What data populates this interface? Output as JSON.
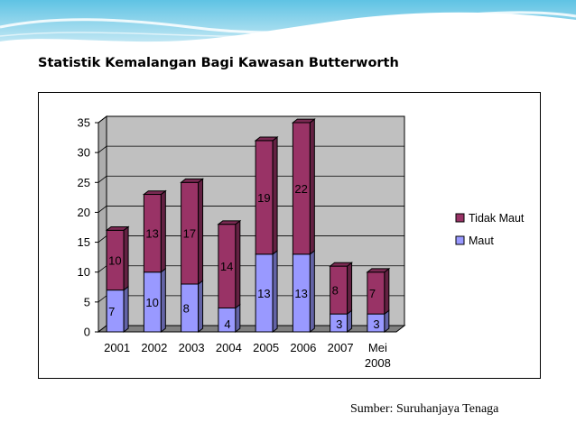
{
  "slide": {
    "title": "Statistik Kemalangan Bagi Kawasan Butterworth",
    "source": "Sumber: Suruhanjaya Tenaga"
  },
  "chart_data": {
    "type": "bar",
    "stacked": true,
    "three_d": true,
    "categories": [
      "2001",
      "2002",
      "2003",
      "2004",
      "2005",
      "2006",
      "2007",
      "Mei 2008"
    ],
    "series": [
      {
        "name": "Maut",
        "values": [
          7,
          10,
          8,
          4,
          13,
          13,
          3,
          3
        ],
        "color": "#9999FF"
      },
      {
        "name": "Tidak Maut",
        "values": [
          10,
          13,
          17,
          14,
          19,
          22,
          8,
          7
        ],
        "color": "#993366"
      }
    ],
    "ylim": [
      0,
      35
    ],
    "yticks": [
      0,
      5,
      10,
      15,
      20,
      25,
      30,
      35
    ],
    "grid": true,
    "legend": "right",
    "legend_order": [
      "Tidak Maut",
      "Maut"
    ],
    "wall_color": "#C0C0C0",
    "floor_color": "#808080"
  }
}
